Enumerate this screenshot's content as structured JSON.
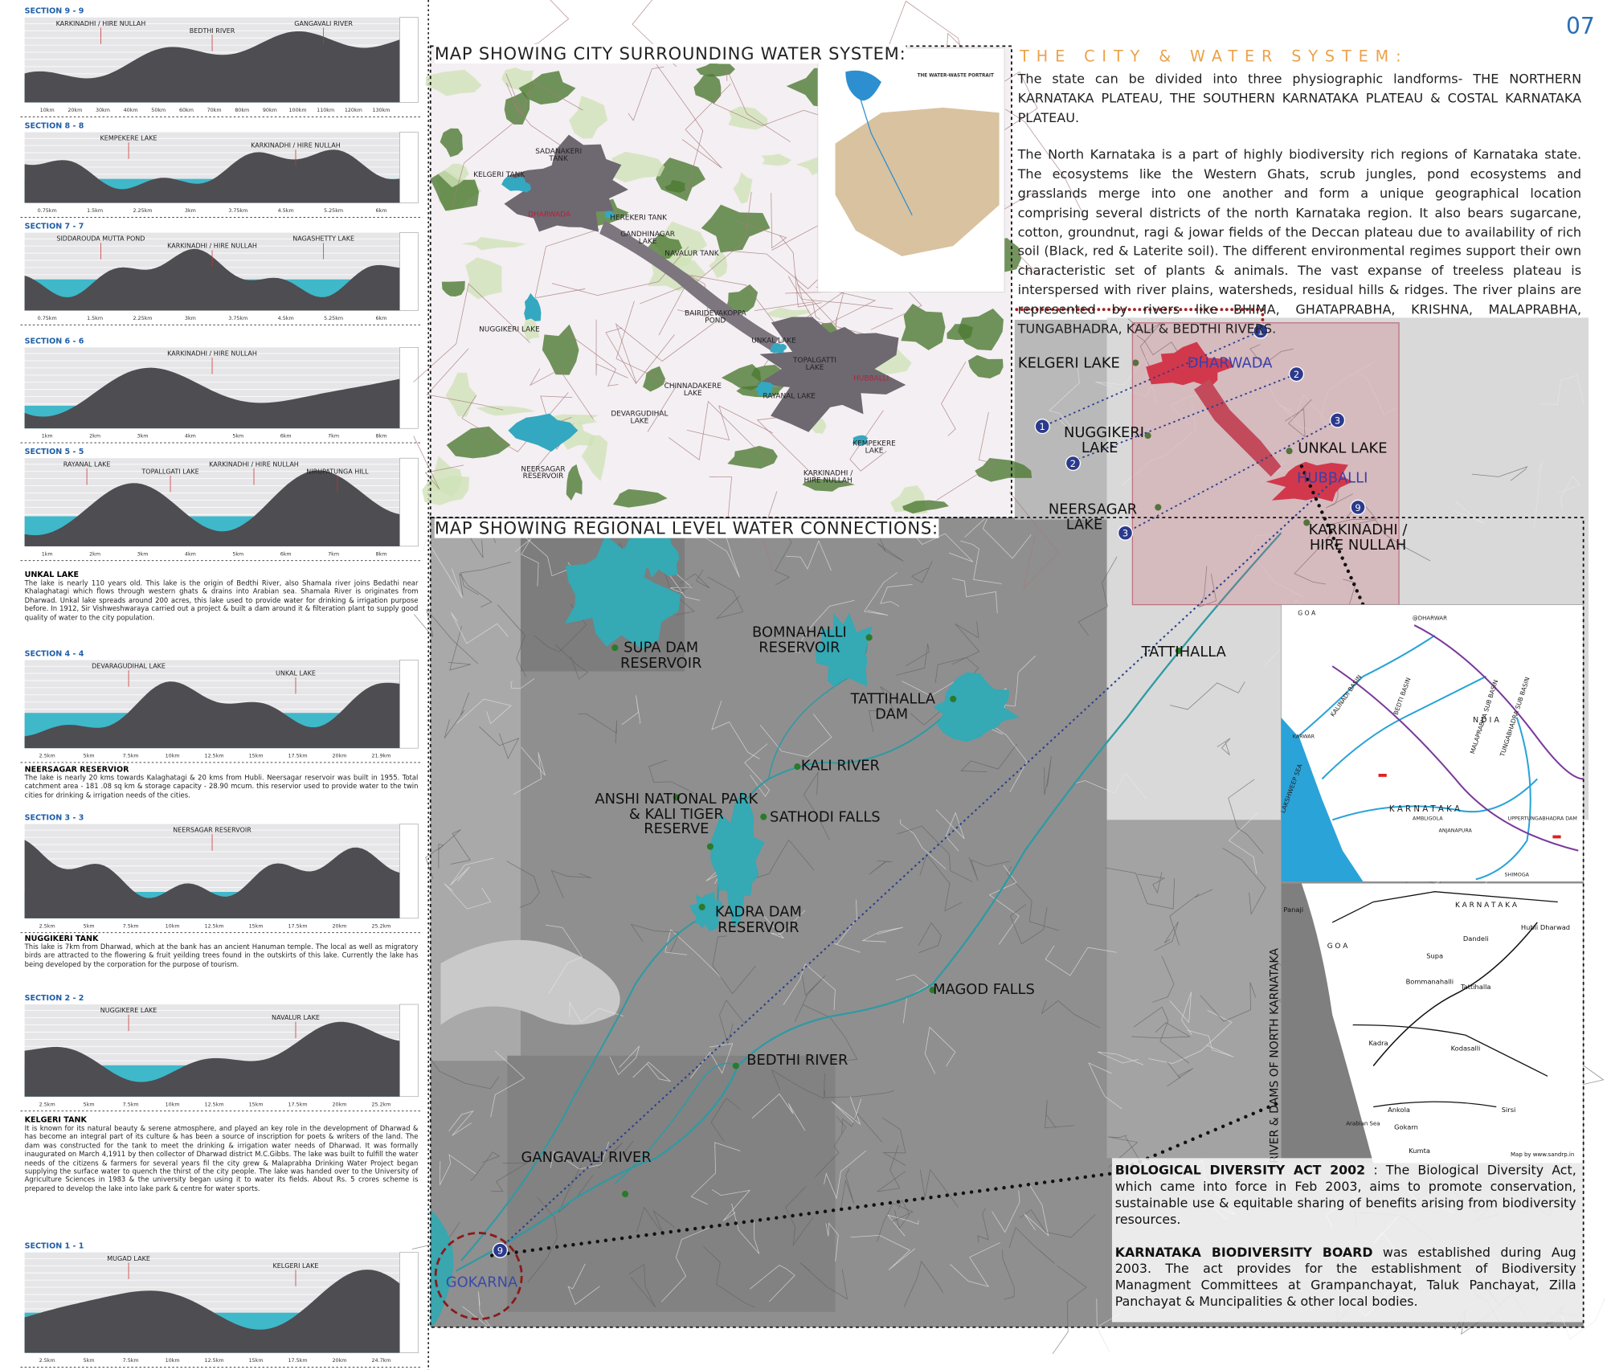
{
  "page_number": "07",
  "sections": [
    {
      "title": "SECTION 9 - 9",
      "labels": [
        "KARKINADHI / HIRE NULLAH",
        "BEDTHI RIVER",
        "GANGAVALI RIVER"
      ],
      "distances": [
        "10km",
        "20km",
        "30km",
        "40km",
        "50km",
        "60km",
        "70km",
        "80km",
        "90km",
        "100km",
        "110km",
        "120km",
        "130km"
      ]
    },
    {
      "title": "SECTION 8 - 8",
      "labels": [
        "KEMPEKERE  LAKE",
        "KARKINADHI / HIRE NULLAH"
      ],
      "distances": [
        "0.75km",
        "1.5km",
        "2.25km",
        "3km",
        "3.75km",
        "4.5km",
        "5.25km",
        "6km"
      ]
    },
    {
      "title": "SECTION 7 - 7",
      "labels": [
        "SIDDAROUDA MUTTA POND",
        "KARKINADHI / HIRE NULLAH",
        "NAGASHETTY LAKE"
      ],
      "distances": [
        "0.75km",
        "1.5km",
        "2.25km",
        "3km",
        "3.75km",
        "4.5km",
        "5.25km",
        "6km"
      ]
    },
    {
      "title": "SECTION 6 - 6",
      "labels": [
        "KARKINADHI / HIRE NULLAH"
      ],
      "distances": [
        "1km",
        "2km",
        "3km",
        "4km",
        "5km",
        "6km",
        "7km",
        "8km"
      ]
    },
    {
      "title": "SECTION 5 - 5",
      "labels": [
        "RAYANAL LAKE",
        "TOPALLGATI LAKE",
        "KARKINADHI / HIRE NULLAH",
        "NIRUPATUNGA HILL"
      ],
      "distances": [
        "1km",
        "2km",
        "3km",
        "4km",
        "5km",
        "6km",
        "7km",
        "8km"
      ]
    },
    {
      "title": "SECTION 4 - 4",
      "labels": [
        "DEVARAGUDIHAL  LAKE",
        "UNKAL  LAKE"
      ],
      "distances": [
        "2.5km",
        "5km",
        "7.5km",
        "10km",
        "12.5km",
        "15km",
        "17.5km",
        "20km",
        "21.9km"
      ]
    },
    {
      "title": "SECTION 3 - 3",
      "labels": [
        "NEERSAGAR  RESERVOIR"
      ],
      "distances": [
        "2.5km",
        "5km",
        "7.5km",
        "10km",
        "12.5km",
        "15km",
        "17.5km",
        "20km",
        "25.2km"
      ]
    },
    {
      "title": "SECTION 2 - 2",
      "labels": [
        "NUGGIKERE LAKE",
        "NAVALUR LAKE"
      ],
      "distances": [
        "2.5km",
        "5km",
        "7.5km",
        "10km",
        "12.5km",
        "15km",
        "17.5km",
        "20km",
        "25.2km"
      ]
    },
    {
      "title": "SECTION 1 - 1",
      "labels": [
        "MUGAD LAKE",
        "KELGERI LAKE"
      ],
      "distances": [
        "2.5km",
        "5km",
        "7.5km",
        "10km",
        "12.5km",
        "15km",
        "17.5km",
        "20km",
        "24.7km"
      ]
    }
  ],
  "notes": [
    {
      "title": "UNKAL LAKE",
      "text": "The lake is nearly 110 years old. This lake is the origin of Bedthi River, also Shamala river joins Bedathi near Khalaghatagi which flows through western ghats & drains into Arabian sea. Shamala River is originates from Dharwad. Unkal lake spreads around 200 acres, this lake used to provide water for drinking & irrigation purpose before. In 1912, Sir Vishweshwaraya carried out a project & built a dam around it & filteration plant to supply good quality of water to the city population."
    },
    {
      "title": "NEERSAGAR  RESERVIOR",
      "text": "The lake is nearly 20 kms towards Kalaghatagi & 20 kms from Hubli. Neersagar reservoir was built in 1955. Total catchment area - 181 .08 sq km & storage capacity - 28.90 mcum. this reservior used to provide water to the twin cities for drinking & irrigation needs of the cities."
    },
    {
      "title": "NUGGIKERI TANK",
      "text": "This lake is 7km from Dharwad, which at the bank has an ancient Hanuman temple. The local as well as migratory birds are attracted to the flowering & fruit yeilding trees found in the  outskirts of this lake. Currently  the lake has being developed by the corporation for the  purpose of tourism."
    },
    {
      "title": "KELGERI TANK",
      "text": "It is known for its natural beauty & serene atmosphere, and played an key role in the development of Dharwad & has become an integral part of its culture & has been a source of inscription for poets & writers of the land. The dam was constructed for the tank to meet the drinking & irrigation water needs of Dharwad. It was formally inaugurated on March 4,1911 by then collector of Dharwad district M.C.Gibbs. The lake was built to fulfill the water needs of the citizens & farmers for several years fil the city grew & Malaprabha Drinking Water Project began supplying the surface water to quench the thirst of the city people. The lake was handed over to the University of Agriculture Sciences in 1983 & the university began using it to water its fields. About Rs. 5 crores scheme is prepared to develop the lake into lake park  & centre for water sports."
    }
  ],
  "city_map": {
    "title": "MAP SHOWING CITY SURROUNDING WATER SYSTEM:",
    "inset_title": "THE WATER-WASTE PORTRAIT",
    "labels": [
      "SADANAKERI TANK",
      "KELGERI TANK",
      "DHARWADA",
      "HEREKERI TANK",
      "GANDHINAGAR LAKE",
      "NAVALUR TANK",
      "NUGGIKERI LAKE",
      "BAIRIDEVAKOPPA POND",
      "UNKAL LAKE",
      "TOPALGATTI LAKE",
      "HUBBALLI",
      "CHINNADAKERE LAKE",
      "RAYANAL LAKE",
      "DEVARGUDIHAL LAKE",
      "NEERSAGAR RESERVOIR",
      "KEMPEKERE LAKE",
      "KARKINADHI / HIRE NULLAH"
    ]
  },
  "city_water_system": {
    "heading": "THE CITY & WATER SYSTEM:",
    "paragraphs": [
      "The state can be divided into three physiographic landforms- THE NORTHERN KARNATAKA PLATEAU, THE SOUTHERN KARNATAKA PLATEAU & COSTAL KARNATAKA PLATEAU.",
      "The North Karnataka is a part of highly biodiversity rich regions of Karnataka state. The ecosystems like the Western Ghats, scrub jungles, pond ecosystems and grasslands merge into one another and form a unique geographical location comprising several districts of the north Karnataka region. It also bears sugarcane, cotton, groundnut, ragi & jowar fields of the Deccan plateau due to availability of rich soil (Black, red & Laterite soil). The different environmental regimes support their own characteristic set of plants & animals.  The vast expanse of treeless plateau is interspersed with river plains, watersheds, residual hills & ridges. The river plains are represented by rivers like BHIMA, GHATAPRABHA, KRISHNA, MALAPRABHA, TUNGABHADRA, KALI & BEDTHI RIVERS."
    ]
  },
  "regional_map": {
    "title": "MAP SHOWING REGIONAL LEVEL WATER CONNECTIONS:",
    "labels": [
      "SUPA DAM RESERVOIR",
      "BOMNAHALLI RESERVOIR",
      "TATTIHALLA DAM",
      "KALI RIVER",
      "ANSHI NATIONAL PARK & KALI TIGER RESERVE",
      "SATHODI FALLS",
      "KADRA DAM RESERVOIR",
      "MAGOD FALLS",
      "BEDTHI RIVER",
      "GANGAVALI RIVER",
      "GOKARNA",
      "TATTIHALLA",
      "KELGERI  LAKE",
      "DHARWADA",
      "NUGGIKERI LAKE",
      "NEERSAGAR LAKE",
      "UNKAL LAKE",
      "HUBBALLI",
      "KARKINADHI / HIRE NULLAH"
    ],
    "markers": [
      "1",
      "2",
      "3",
      "1",
      "2",
      "3",
      "9",
      "9"
    ]
  },
  "basin_map": {
    "labels": [
      "G O A",
      "@DHARWAR",
      "MALAPRABHA SUB BASIN",
      "TUNGABHADRA SUB BASIN",
      "KALINADI BASIN",
      "BEDTI BASIN",
      "N D I A",
      "K A R N A T A K A",
      "LAKSHWEEP SEA",
      "KARWAR",
      "SHIMOGA",
      "UPPERTUNGABHADRA DAM",
      "ANJANAPURA",
      "AMBLIGOLA"
    ]
  },
  "rivers_dams_map": {
    "caption": "RIVER & DAMS OF NORTH KARNATAKA",
    "labels": [
      "Panaji",
      "G O A",
      "K A R N A T A K A",
      "Hubli Dharwad",
      "Supa",
      "Dandeli",
      "Bommanahalli",
      "Tattihalla",
      "Kadra",
      "Kodasalli",
      "Ankola",
      "Gokarn",
      "Sirsi",
      "Kumta",
      "Arabian Sea",
      "Map by www.sandrp.in"
    ]
  },
  "biodiversity": [
    {
      "bold": "BIOLOGICAL DIVERSITY ACT 2002",
      "text": " : The Biological Diversity Act, which came into force in Feb 2003, aims to promote conservation, sustainable use & equitable sharing of benefits arising from biodiversity resources."
    },
    {
      "bold": "KARNATAKA BIODIVERSITY BOARD",
      "text": " was established during Aug 2003. The act  provides for the establishment of Biodiversity Managment Committees at Grampanchayat, Taluk Panchayat, Zilla Panchayat & Muncipalities & other local bodies."
    }
  ]
}
